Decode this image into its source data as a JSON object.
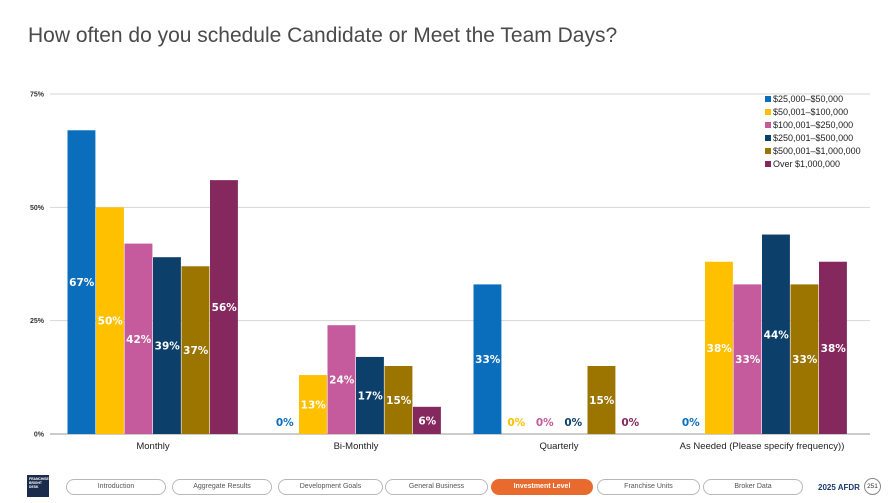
{
  "page": {
    "title": "How often do you schedule Candidate or Meet the Team Days?"
  },
  "chart_data": {
    "type": "bar",
    "title": "How often do you schedule Candidate or Meet the Team Days?",
    "categories": [
      "Monthly",
      "Bi-Monthly",
      "Quarterly",
      "As Needed (Please specify frequency))"
    ],
    "y_ticks": [
      "75%",
      "50%",
      "25%",
      "0%"
    ],
    "ylim": [
      0,
      75
    ],
    "grid": true,
    "legend_position": "top-right",
    "series": [
      {
        "name": "$25,000–$50,000",
        "color": "#0a6ebd",
        "values": [
          67,
          0,
          33,
          0
        ],
        "labels": [
          "67%",
          "0%",
          "33%",
          "0%"
        ]
      },
      {
        "name": "$50,001–$100,000",
        "color": "#ffc000",
        "values": [
          50,
          13,
          0,
          38
        ],
        "labels": [
          "50%",
          "13%",
          "0%",
          "38%"
        ]
      },
      {
        "name": "$100,001–$250,000",
        "color": "#c55a9c",
        "values": [
          42,
          24,
          0,
          33
        ],
        "labels": [
          "42%",
          "24%",
          "0%",
          "33%"
        ]
      },
      {
        "name": "$250,001–$500,000",
        "color": "#0d3f6b",
        "values": [
          39,
          17,
          0,
          44
        ],
        "labels": [
          "39%",
          "17%",
          "0%",
          "44%"
        ]
      },
      {
        "name": "$500,001–$1,000,000",
        "color": "#9c7400",
        "values": [
          37,
          15,
          15,
          33
        ],
        "labels": [
          "37%",
          "15%",
          "15%",
          "33%"
        ]
      },
      {
        "name": "Over $1,000,000",
        "color": "#85285e",
        "values": [
          56,
          6,
          0,
          38
        ],
        "labels": [
          "56%",
          "6%",
          "0%",
          "38%"
        ]
      }
    ]
  },
  "footer": {
    "logo_text": "FRANCHISE BRIGHT DESK",
    "nav": [
      {
        "label": "Introduction",
        "active": false
      },
      {
        "label": "Aggregate Results",
        "active": false
      },
      {
        "label": "Development Goals",
        "active": false
      },
      {
        "label": "General Business",
        "active": false
      },
      {
        "label": "Investment Level",
        "active": true
      },
      {
        "label": "Franchise Units",
        "active": false
      },
      {
        "label": "Broker Data",
        "active": false
      }
    ],
    "report_label": "2025 AFDR",
    "page_number": "251"
  }
}
